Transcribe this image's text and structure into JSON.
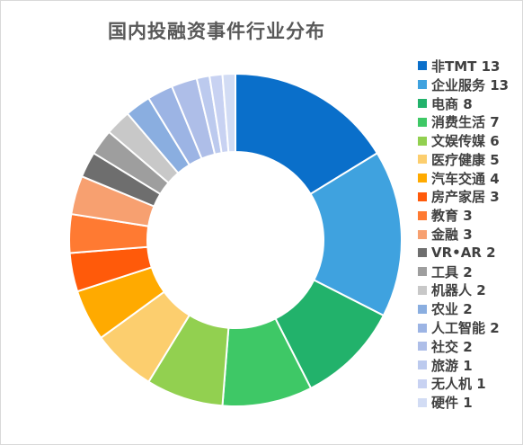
{
  "chart_data": {
    "type": "pie",
    "variant": "donut",
    "title": "国内投融资事件行业分布",
    "legend_position": "right",
    "categories": [
      "非TMT",
      "企业服务",
      "电商",
      "消费生活",
      "文娱传媒",
      "医疗健康",
      "汽车交通",
      "房产家居",
      "教育",
      "金融",
      "VR•AR",
      "工具",
      "机器人",
      "农业",
      "人工智能",
      "社交",
      "旅游",
      "无人机",
      "硬件"
    ],
    "values": [
      13,
      13,
      8,
      7,
      6,
      5,
      4,
      3,
      3,
      3,
      2,
      2,
      2,
      2,
      2,
      2,
      1,
      1,
      1
    ],
    "colors": [
      "#0a6fca",
      "#3fa2df",
      "#22b26b",
      "#3ec866",
      "#92d050",
      "#fcce6e",
      "#ffaa00",
      "#ff5a0a",
      "#ff7a32",
      "#f7a070",
      "#6e6e6e",
      "#9e9e9e",
      "#c8c8c8",
      "#8aaee0",
      "#9cb4e4",
      "#aebee8",
      "#bccaee",
      "#c8d2f2",
      "#d2dcf4"
    ]
  }
}
